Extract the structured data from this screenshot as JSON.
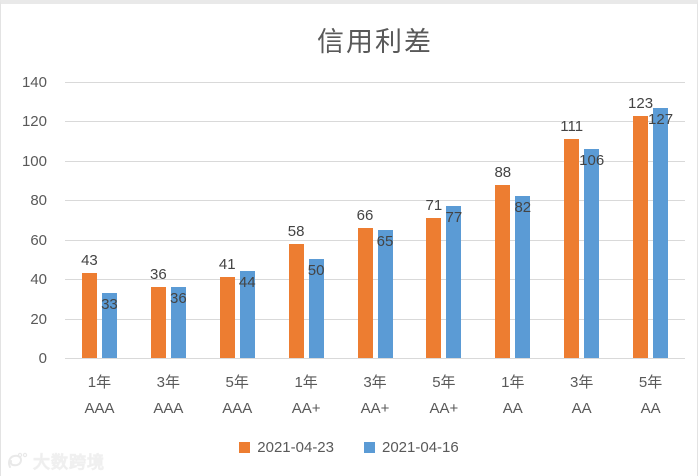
{
  "title": "信用利差",
  "watermark": {
    "text": "大数跨境"
  },
  "colors": {
    "series1": "#ED7D31",
    "series2": "#5B9BD5",
    "gridline": "#d9d9d9",
    "axis_text": "#595959",
    "data_label": "#444444",
    "title_text": "#595959"
  },
  "chart_data": {
    "type": "bar",
    "title": "信用利差",
    "categories": [
      {
        "line1": "1年",
        "line2": "AAA"
      },
      {
        "line1": "3年",
        "line2": "AAA"
      },
      {
        "line1": "5年",
        "line2": "AAA"
      },
      {
        "line1": "1年",
        "line2": "AA+"
      },
      {
        "line1": "3年",
        "line2": "AA+"
      },
      {
        "line1": "5年",
        "line2": "AA+"
      },
      {
        "line1": "1年",
        "line2": "AA"
      },
      {
        "line1": "3年",
        "line2": "AA"
      },
      {
        "line1": "5年",
        "line2": "AA"
      }
    ],
    "series": [
      {
        "name": "2021-04-23",
        "color": "#ED7D31",
        "values": [
          43,
          36,
          41,
          58,
          66,
          71,
          88,
          111,
          123
        ],
        "label_position": "outside-end"
      },
      {
        "name": "2021-04-16",
        "color": "#5B9BD5",
        "values": [
          33,
          36,
          44,
          50,
          65,
          77,
          82,
          106,
          127
        ],
        "label_position": "inside-end"
      }
    ],
    "xlabel": "",
    "ylabel": "",
    "ylim": [
      0,
      140
    ],
    "ytick_step": 20,
    "grid": true,
    "legend_position": "bottom"
  }
}
